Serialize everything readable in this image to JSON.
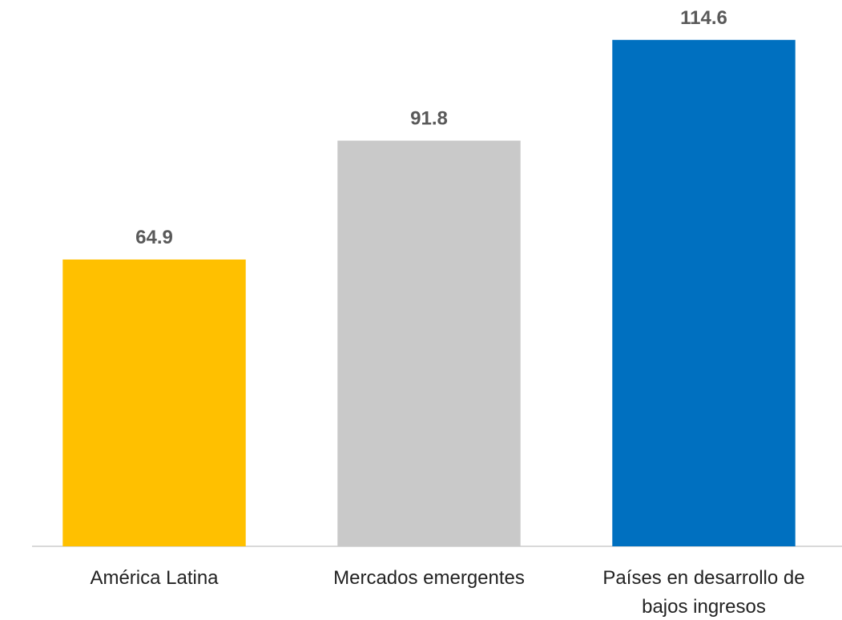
{
  "chart_data": {
    "type": "bar",
    "categories": [
      "América Latina",
      "Mercados emergentes",
      "Países en desarrollo de bajos ingresos"
    ],
    "values": [
      64.9,
      91.8,
      114.6
    ],
    "colors": [
      "#FFC000",
      "#C9C9C9",
      "#0070C0"
    ],
    "ylim": [
      0,
      120
    ]
  }
}
